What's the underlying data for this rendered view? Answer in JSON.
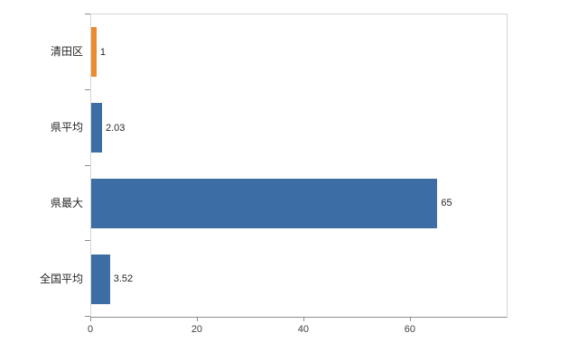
{
  "chart_data": {
    "type": "bar",
    "orientation": "horizontal",
    "categories": [
      "清田区",
      "県平均",
      "県最大",
      "全国平均"
    ],
    "values": [
      1,
      2.03,
      65,
      3.52
    ],
    "value_labels": [
      "1",
      "2.03",
      "65",
      "3.52"
    ],
    "bar_colors": [
      "#ed8a2d",
      "#3c6ea5",
      "#3c6ea5",
      "#3c6ea5"
    ],
    "xlim": [
      0,
      78
    ],
    "x_ticks": [
      0,
      20,
      40,
      60
    ],
    "grid": false,
    "legend": "none",
    "title": "",
    "xlabel": "",
    "ylabel": ""
  },
  "colors": {
    "bar_blue": "#3c6ea5",
    "bar_orange": "#ed8a2d",
    "frame": "#d4d4d4",
    "axis": "#8c8c8c",
    "text": "#262626"
  }
}
